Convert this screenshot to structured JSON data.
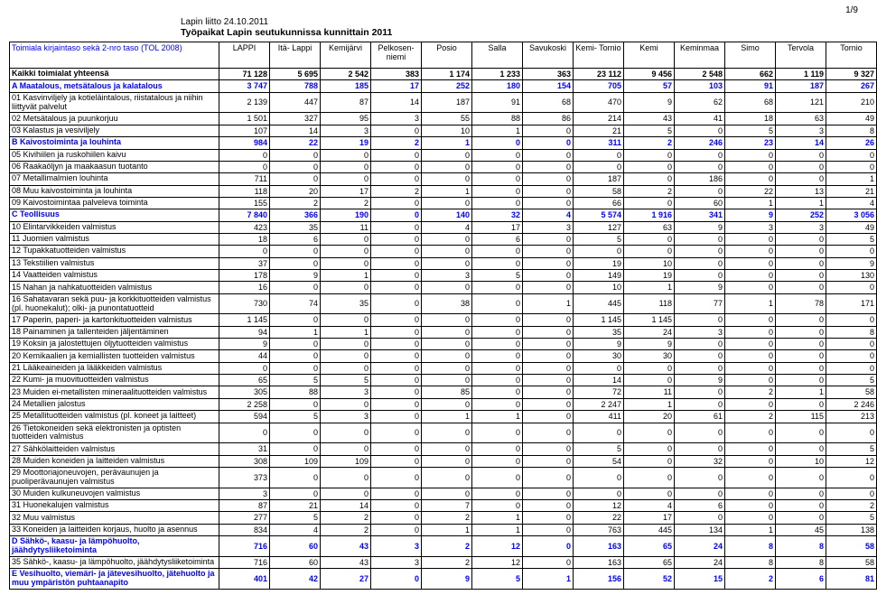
{
  "page_number": "1/9",
  "header_small": "Lapin liitto 24.10.2011",
  "header_title": "Työpaikat Lapin seutukunnissa kunnittain 2011",
  "table_caption": "Toimiala kirjaintaso sekä 2-nro taso (TOL 2008)",
  "columns": [
    "LAPPI",
    "Itä-Lappi",
    "Kemijärvi",
    "Pelkosen-niemi",
    "Posio",
    "Salla",
    "Savukoski",
    "Kemi-Tornio",
    "Kemi",
    "Keminmaa",
    "Simo",
    "Tervola",
    "Tornio"
  ],
  "rows": [
    {
      "label": "Kaikki toimialat yhteensä",
      "cls": "black bold",
      "v": [
        "71 128",
        "5 695",
        "2 542",
        "383",
        "1 174",
        "1 233",
        "363",
        "23 112",
        "9 456",
        "2 548",
        "662",
        "1 119",
        "9 327"
      ]
    },
    {
      "label": "A   Maatalous, metsätalous ja kalatalous",
      "cls": "blue bold",
      "v": [
        "3 747",
        "788",
        "185",
        "17",
        "252",
        "180",
        "154",
        "705",
        "57",
        "103",
        "91",
        "187",
        "267"
      ]
    },
    {
      "label": "01   Kasvinviljely ja kotieläintalous, riistatalous ja niihin liittyvät palvelut",
      "cls": "black",
      "v": [
        "2 139",
        "447",
        "87",
        "14",
        "187",
        "91",
        "68",
        "470",
        "9",
        "62",
        "68",
        "121",
        "210"
      ]
    },
    {
      "label": "02   Metsätalous ja puunkorjuu",
      "cls": "black",
      "v": [
        "1 501",
        "327",
        "95",
        "3",
        "55",
        "88",
        "86",
        "214",
        "43",
        "41",
        "18",
        "63",
        "49"
      ]
    },
    {
      "label": "03   Kalastus ja vesiviljely",
      "cls": "black",
      "v": [
        "107",
        "14",
        "3",
        "0",
        "10",
        "1",
        "0",
        "21",
        "5",
        "0",
        "5",
        "3",
        "8"
      ]
    },
    {
      "label": "B   Kaivostoiminta ja louhinta",
      "cls": "blue bold",
      "v": [
        "984",
        "22",
        "19",
        "2",
        "1",
        "0",
        "0",
        "311",
        "2",
        "246",
        "23",
        "14",
        "26"
      ]
    },
    {
      "label": "05   Kivihiilen ja ruskohiilen kaivu",
      "cls": "black",
      "v": [
        "0",
        "0",
        "0",
        "0",
        "0",
        "0",
        "0",
        "0",
        "0",
        "0",
        "0",
        "0",
        "0"
      ]
    },
    {
      "label": "06   Raakaöljyn ja maakaasun tuotanto",
      "cls": "black",
      "v": [
        "0",
        "0",
        "0",
        "0",
        "0",
        "0",
        "0",
        "0",
        "0",
        "0",
        "0",
        "0",
        "0"
      ]
    },
    {
      "label": "07   Metallimalmien louhinta",
      "cls": "black",
      "v": [
        "711",
        "0",
        "0",
        "0",
        "0",
        "0",
        "0",
        "187",
        "0",
        "186",
        "0",
        "0",
        "1"
      ]
    },
    {
      "label": "08   Muu kaivostoiminta ja louhinta",
      "cls": "black",
      "v": [
        "118",
        "20",
        "17",
        "2",
        "1",
        "0",
        "0",
        "58",
        "2",
        "0",
        "22",
        "13",
        "21"
      ]
    },
    {
      "label": "09   Kaivostoimintaa palveleva toiminta",
      "cls": "black",
      "v": [
        "155",
        "2",
        "2",
        "0",
        "0",
        "0",
        "0",
        "66",
        "0",
        "60",
        "1",
        "1",
        "4"
      ]
    },
    {
      "label": "C   Teollisuus",
      "cls": "blue bold",
      "v": [
        "7 840",
        "366",
        "190",
        "0",
        "140",
        "32",
        "4",
        "5 574",
        "1 916",
        "341",
        "9",
        "252",
        "3 056"
      ]
    },
    {
      "label": "10   Elintarvikkeiden valmistus",
      "cls": "black",
      "v": [
        "423",
        "35",
        "11",
        "0",
        "4",
        "17",
        "3",
        "127",
        "63",
        "9",
        "3",
        "3",
        "49"
      ]
    },
    {
      "label": "11   Juomien valmistus",
      "cls": "black",
      "v": [
        "18",
        "6",
        "0",
        "0",
        "0",
        "6",
        "0",
        "5",
        "0",
        "0",
        "0",
        "0",
        "5"
      ]
    },
    {
      "label": "12   Tupakkatuotteiden valmistus",
      "cls": "black",
      "v": [
        "0",
        "0",
        "0",
        "0",
        "0",
        "0",
        "0",
        "0",
        "0",
        "0",
        "0",
        "0",
        "0"
      ]
    },
    {
      "label": "13   Tekstiilien valmistus",
      "cls": "black",
      "v": [
        "37",
        "0",
        "0",
        "0",
        "0",
        "0",
        "0",
        "19",
        "10",
        "0",
        "0",
        "0",
        "9"
      ]
    },
    {
      "label": "14   Vaatteiden valmistus",
      "cls": "black",
      "v": [
        "178",
        "9",
        "1",
        "0",
        "3",
        "5",
        "0",
        "149",
        "19",
        "0",
        "0",
        "0",
        "130"
      ]
    },
    {
      "label": "15   Nahan ja nahkatuotteiden valmistus",
      "cls": "black",
      "v": [
        "16",
        "0",
        "0",
        "0",
        "0",
        "0",
        "0",
        "10",
        "1",
        "9",
        "0",
        "0",
        "0"
      ]
    },
    {
      "label": "16   Sahatavaran sekä puu- ja korkkituotteiden valmistus (pl. huonekalut); olki- ja punontatuotteid",
      "cls": "black",
      "v": [
        "730",
        "74",
        "35",
        "0",
        "38",
        "0",
        "1",
        "445",
        "118",
        "77",
        "1",
        "78",
        "171"
      ]
    },
    {
      "label": "17   Paperin, paperi- ja kartonkituotteiden valmistus",
      "cls": "black",
      "v": [
        "1 145",
        "0",
        "0",
        "0",
        "0",
        "0",
        "0",
        "1 145",
        "1 145",
        "0",
        "0",
        "0",
        "0"
      ]
    },
    {
      "label": "18   Painaminen ja tallenteiden jäljentäminen",
      "cls": "black",
      "v": [
        "94",
        "1",
        "1",
        "0",
        "0",
        "0",
        "0",
        "35",
        "24",
        "3",
        "0",
        "0",
        "8"
      ]
    },
    {
      "label": "19   Koksin ja jalostettujen öljytuotteiden valmistus",
      "cls": "black",
      "v": [
        "9",
        "0",
        "0",
        "0",
        "0",
        "0",
        "0",
        "9",
        "9",
        "0",
        "0",
        "0",
        "0"
      ]
    },
    {
      "label": "20   Kemikaalien ja kemiallisten tuotteiden valmistus",
      "cls": "black",
      "v": [
        "44",
        "0",
        "0",
        "0",
        "0",
        "0",
        "0",
        "30",
        "30",
        "0",
        "0",
        "0",
        "0"
      ]
    },
    {
      "label": "21   Lääkeaineiden ja lääkkeiden valmistus",
      "cls": "black",
      "v": [
        "0",
        "0",
        "0",
        "0",
        "0",
        "0",
        "0",
        "0",
        "0",
        "0",
        "0",
        "0",
        "0"
      ]
    },
    {
      "label": "22   Kumi- ja muovituotteiden valmistus",
      "cls": "black",
      "v": [
        "65",
        "5",
        "5",
        "0",
        "0",
        "0",
        "0",
        "14",
        "0",
        "9",
        "0",
        "0",
        "5"
      ]
    },
    {
      "label": "23   Muiden ei-metallisten mineraalituotteiden valmistus",
      "cls": "black",
      "v": [
        "305",
        "88",
        "3",
        "0",
        "85",
        "0",
        "0",
        "72",
        "11",
        "0",
        "2",
        "1",
        "58"
      ]
    },
    {
      "label": "24   Metallien jalostus",
      "cls": "black",
      "v": [
        "2 258",
        "0",
        "0",
        "0",
        "0",
        "0",
        "0",
        "2 247",
        "1",
        "0",
        "0",
        "0",
        "2 246"
      ]
    },
    {
      "label": "25   Metallituotteiden valmistus (pl. koneet ja laitteet)",
      "cls": "black",
      "v": [
        "594",
        "5",
        "3",
        "0",
        "1",
        "1",
        "0",
        "411",
        "20",
        "61",
        "2",
        "115",
        "213"
      ]
    },
    {
      "label": "26   Tietokoneiden sekä elektronisten ja optisten tuotteiden valmistus",
      "cls": "black",
      "v": [
        "0",
        "0",
        "0",
        "0",
        "0",
        "0",
        "0",
        "0",
        "0",
        "0",
        "0",
        "0",
        "0"
      ]
    },
    {
      "label": "27   Sähkölaitteiden valmistus",
      "cls": "black",
      "v": [
        "31",
        "0",
        "0",
        "0",
        "0",
        "0",
        "0",
        "5",
        "0",
        "0",
        "0",
        "0",
        "5"
      ]
    },
    {
      "label": "28   Muiden koneiden ja laitteiden valmistus",
      "cls": "black",
      "v": [
        "308",
        "109",
        "109",
        "0",
        "0",
        "0",
        "0",
        "54",
        "0",
        "32",
        "0",
        "10",
        "12"
      ]
    },
    {
      "label": "29   Moottoriajoneuvojen, perävaunujen ja puoliperävaunujen valmistus",
      "cls": "black",
      "v": [
        "373",
        "0",
        "0",
        "0",
        "0",
        "0",
        "0",
        "0",
        "0",
        "0",
        "0",
        "0",
        "0"
      ]
    },
    {
      "label": "30   Muiden kulkuneuvojen valmistus",
      "cls": "black",
      "v": [
        "3",
        "0",
        "0",
        "0",
        "0",
        "0",
        "0",
        "0",
        "0",
        "0",
        "0",
        "0",
        "0"
      ]
    },
    {
      "label": "31   Huonekalujen valmistus",
      "cls": "black",
      "v": [
        "87",
        "21",
        "14",
        "0",
        "7",
        "0",
        "0",
        "12",
        "4",
        "6",
        "0",
        "0",
        "2"
      ]
    },
    {
      "label": "32   Muu valmistus",
      "cls": "black",
      "v": [
        "277",
        "5",
        "2",
        "0",
        "2",
        "1",
        "0",
        "22",
        "17",
        "0",
        "0",
        "0",
        "5"
      ]
    },
    {
      "label": "33   Koneiden ja laitteiden korjaus, huolto ja asennus",
      "cls": "black",
      "v": [
        "834",
        "4",
        "2",
        "0",
        "1",
        "1",
        "0",
        "763",
        "445",
        "134",
        "1",
        "45",
        "138"
      ]
    },
    {
      "label": "D   Sähkö-, kaasu- ja lämpöhuolto, jäähdytysliiketoiminta",
      "cls": "blue bold",
      "v": [
        "716",
        "60",
        "43",
        "3",
        "2",
        "12",
        "0",
        "163",
        "65",
        "24",
        "8",
        "8",
        "58"
      ]
    },
    {
      "label": "35   Sähkö-, kaasu- ja lämpöhuolto, jäähdytysliiketoiminta",
      "cls": "black",
      "v": [
        "716",
        "60",
        "43",
        "3",
        "2",
        "12",
        "0",
        "163",
        "65",
        "24",
        "8",
        "8",
        "58"
      ]
    },
    {
      "label": "E   Vesihuolto, viemäri- ja jätevesihuolto, jätehuolto ja muu ympäristön puhtaanapito",
      "cls": "blue bold",
      "v": [
        "401",
        "42",
        "27",
        "0",
        "9",
        "5",
        "1",
        "156",
        "52",
        "15",
        "2",
        "6",
        "81"
      ]
    }
  ]
}
